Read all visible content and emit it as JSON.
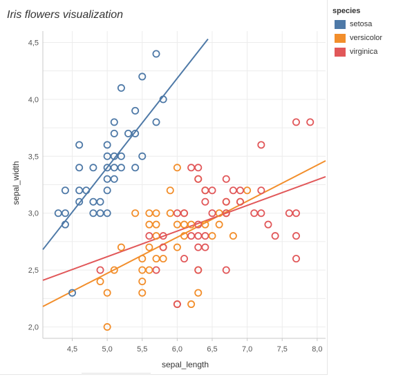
{
  "title": "Iris flowers visualization",
  "legend": {
    "title": "species",
    "items": [
      {
        "label": "setosa",
        "color": "#4e79a7"
      },
      {
        "label": "versicolor",
        "color": "#f28e2b"
      },
      {
        "label": "virginica",
        "color": "#e15759"
      }
    ]
  },
  "chart_data": {
    "type": "scatter",
    "title": "Iris flowers visualization",
    "xlabel": "sepal_length",
    "ylabel": "sepal_width",
    "xlim": [
      4.08,
      8.12
    ],
    "ylim": [
      1.9,
      4.6
    ],
    "xticks": [
      "4,5",
      "5,0",
      "5,5",
      "6,0",
      "6,5",
      "7,0",
      "7,5",
      "8,0"
    ],
    "xtick_values": [
      4.5,
      5.0,
      5.5,
      6.0,
      6.5,
      7.0,
      7.5,
      8.0
    ],
    "yticks": [
      "2,0",
      "2,5",
      "3,0",
      "3,5",
      "4,0",
      "4,5"
    ],
    "ytick_values": [
      2.0,
      2.5,
      3.0,
      3.5,
      4.0,
      4.5
    ],
    "grid": true,
    "legend_position": "right",
    "marker": "hollow-circle",
    "series": [
      {
        "name": "setosa",
        "color": "#4e79a7",
        "trend": {
          "x": [
            4.08,
            6.44
          ],
          "y": [
            2.68,
            4.53
          ]
        },
        "points": [
          [
            4.3,
            3.0
          ],
          [
            4.4,
            3.0
          ],
          [
            4.4,
            2.9
          ],
          [
            4.4,
            3.2
          ],
          [
            4.5,
            2.3
          ],
          [
            4.6,
            3.1
          ],
          [
            4.6,
            3.2
          ],
          [
            4.6,
            3.4
          ],
          [
            4.6,
            3.6
          ],
          [
            4.7,
            3.2
          ],
          [
            4.8,
            3.0
          ],
          [
            4.8,
            3.1
          ],
          [
            4.8,
            3.4
          ],
          [
            4.9,
            3.0
          ],
          [
            4.9,
            3.1
          ],
          [
            5.0,
            3.0
          ],
          [
            5.0,
            3.2
          ],
          [
            5.0,
            3.3
          ],
          [
            5.0,
            3.4
          ],
          [
            5.0,
            3.5
          ],
          [
            5.0,
            3.6
          ],
          [
            5.1,
            3.3
          ],
          [
            5.1,
            3.4
          ],
          [
            5.1,
            3.5
          ],
          [
            5.1,
            3.7
          ],
          [
            5.1,
            3.8
          ],
          [
            5.2,
            3.4
          ],
          [
            5.2,
            3.5
          ],
          [
            5.2,
            4.1
          ],
          [
            5.3,
            3.7
          ],
          [
            5.4,
            3.4
          ],
          [
            5.4,
            3.7
          ],
          [
            5.4,
            3.9
          ],
          [
            5.5,
            3.5
          ],
          [
            5.5,
            4.2
          ],
          [
            5.7,
            3.8
          ],
          [
            5.7,
            4.4
          ],
          [
            5.8,
            4.0
          ]
        ]
      },
      {
        "name": "versicolor",
        "color": "#f28e2b",
        "trend": {
          "x": [
            4.08,
            8.12
          ],
          "y": [
            2.18,
            3.46
          ]
        },
        "points": [
          [
            4.9,
            2.4
          ],
          [
            5.0,
            2.0
          ],
          [
            5.0,
            2.3
          ],
          [
            5.1,
            2.5
          ],
          [
            5.2,
            2.7
          ],
          [
            5.4,
            3.0
          ],
          [
            5.5,
            2.3
          ],
          [
            5.5,
            2.4
          ],
          [
            5.5,
            2.5
          ],
          [
            5.5,
            2.6
          ],
          [
            5.6,
            2.5
          ],
          [
            5.6,
            2.7
          ],
          [
            5.6,
            2.9
          ],
          [
            5.6,
            3.0
          ],
          [
            5.7,
            2.6
          ],
          [
            5.7,
            2.8
          ],
          [
            5.7,
            2.9
          ],
          [
            5.7,
            3.0
          ],
          [
            5.8,
            2.6
          ],
          [
            5.8,
            2.7
          ],
          [
            5.9,
            3.0
          ],
          [
            5.9,
            3.2
          ],
          [
            6.0,
            2.2
          ],
          [
            6.0,
            2.7
          ],
          [
            6.0,
            2.9
          ],
          [
            6.0,
            3.4
          ],
          [
            6.1,
            2.8
          ],
          [
            6.1,
            2.9
          ],
          [
            6.1,
            3.0
          ],
          [
            6.2,
            2.2
          ],
          [
            6.2,
            2.9
          ],
          [
            6.3,
            2.3
          ],
          [
            6.3,
            2.5
          ],
          [
            6.3,
            3.3
          ],
          [
            6.4,
            2.9
          ],
          [
            6.4,
            3.2
          ],
          [
            6.5,
            2.8
          ],
          [
            6.6,
            2.9
          ],
          [
            6.6,
            3.0
          ],
          [
            6.7,
            3.0
          ],
          [
            6.7,
            3.1
          ],
          [
            6.8,
            2.8
          ],
          [
            6.9,
            3.1
          ],
          [
            7.0,
            3.2
          ]
        ]
      },
      {
        "name": "virginica",
        "color": "#e15759",
        "trend": {
          "x": [
            4.08,
            8.12
          ],
          "y": [
            2.41,
            3.32
          ]
        },
        "points": [
          [
            4.9,
            2.5
          ],
          [
            5.6,
            2.8
          ],
          [
            5.7,
            2.5
          ],
          [
            5.8,
            2.7
          ],
          [
            5.8,
            2.8
          ],
          [
            6.0,
            2.2
          ],
          [
            6.0,
            3.0
          ],
          [
            6.1,
            2.6
          ],
          [
            6.1,
            3.0
          ],
          [
            6.2,
            2.8
          ],
          [
            6.2,
            3.4
          ],
          [
            6.3,
            2.5
          ],
          [
            6.3,
            2.7
          ],
          [
            6.3,
            2.8
          ],
          [
            6.3,
            2.9
          ],
          [
            6.3,
            3.3
          ],
          [
            6.3,
            3.4
          ],
          [
            6.4,
            2.7
          ],
          [
            6.4,
            2.8
          ],
          [
            6.4,
            3.1
          ],
          [
            6.4,
            3.2
          ],
          [
            6.5,
            3.0
          ],
          [
            6.5,
            3.2
          ],
          [
            6.7,
            2.5
          ],
          [
            6.7,
            3.0
          ],
          [
            6.7,
            3.1
          ],
          [
            6.7,
            3.3
          ],
          [
            6.8,
            3.2
          ],
          [
            6.9,
            3.1
          ],
          [
            6.9,
            3.2
          ],
          [
            7.1,
            3.0
          ],
          [
            7.2,
            3.0
          ],
          [
            7.2,
            3.2
          ],
          [
            7.2,
            3.6
          ],
          [
            7.3,
            2.9
          ],
          [
            7.4,
            2.8
          ],
          [
            7.6,
            3.0
          ],
          [
            7.7,
            2.6
          ],
          [
            7.7,
            2.8
          ],
          [
            7.7,
            3.0
          ],
          [
            7.7,
            3.8
          ],
          [
            7.9,
            3.8
          ]
        ]
      }
    ]
  }
}
